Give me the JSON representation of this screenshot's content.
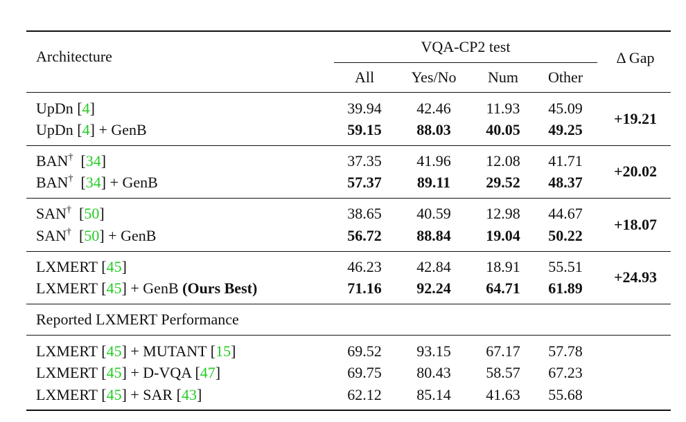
{
  "header": {
    "architecture": "Architecture",
    "group": "VQA-CP2 test",
    "all": "All",
    "yesno": "Yes/No",
    "num": "Num",
    "other": "Other",
    "gap": "Δ Gap"
  },
  "rows": [
    {
      "name": "UpDn ",
      "cite": "4",
      "suffix": "",
      "all": "39.94",
      "yesno": "42.46",
      "num": "11.93",
      "other": "45.09"
    },
    {
      "name": "UpDn ",
      "cite": "4",
      "suffix": " + GenB",
      "all": "59.15",
      "yesno": "88.03",
      "num": "40.05",
      "other": "49.25"
    },
    {
      "name": "BAN",
      "dagger": "†",
      "cite": "34",
      "suffix": "",
      "all": "37.35",
      "yesno": "41.96",
      "num": "12.08",
      "other": "41.71"
    },
    {
      "name": "BAN",
      "dagger": "†",
      "cite": "34",
      "suffix": " + GenB",
      "all": "57.37",
      "yesno": "89.11",
      "num": "29.52",
      "other": "48.37"
    },
    {
      "name": "SAN",
      "dagger": "†",
      "cite": "50",
      "suffix": "",
      "all": "38.65",
      "yesno": "40.59",
      "num": "12.98",
      "other": "44.67"
    },
    {
      "name": "SAN",
      "dagger": "†",
      "cite": "50",
      "suffix": " + GenB",
      "all": "56.72",
      "yesno": "88.84",
      "num": "19.04",
      "other": "50.22"
    },
    {
      "name": "LXMERT ",
      "cite": "45",
      "suffix": "",
      "all": "46.23",
      "yesno": "42.84",
      "num": "18.91",
      "other": "55.51"
    },
    {
      "name": "LXMERT ",
      "cite": "45",
      "suffix": " + GenB ",
      "suffix_bold": "(Ours Best)",
      "all": "71.16",
      "yesno": "92.24",
      "num": "64.71",
      "other": "61.89"
    }
  ],
  "gaps": [
    "+19.21",
    "+20.02",
    "+18.07",
    "+24.93"
  ],
  "reported": {
    "title": "Reported LXMERT Performance",
    "rows": [
      {
        "name": "LXMERT ",
        "cite": "45",
        "mid": " + MUTANT ",
        "cite2": "15",
        "all": "69.52",
        "yesno": "93.15",
        "num": "67.17",
        "other": "57.78"
      },
      {
        "name": "LXMERT ",
        "cite": "45",
        "mid": " + D-VQA ",
        "cite2": "47",
        "all": "69.75",
        "yesno": "80.43",
        "num": "58.57",
        "other": "67.23"
      },
      {
        "name": "LXMERT ",
        "cite": "45",
        "mid": " + SAR ",
        "cite2": "43",
        "all": "62.12",
        "yesno": "85.14",
        "num": "41.63",
        "other": "55.68"
      }
    ]
  }
}
